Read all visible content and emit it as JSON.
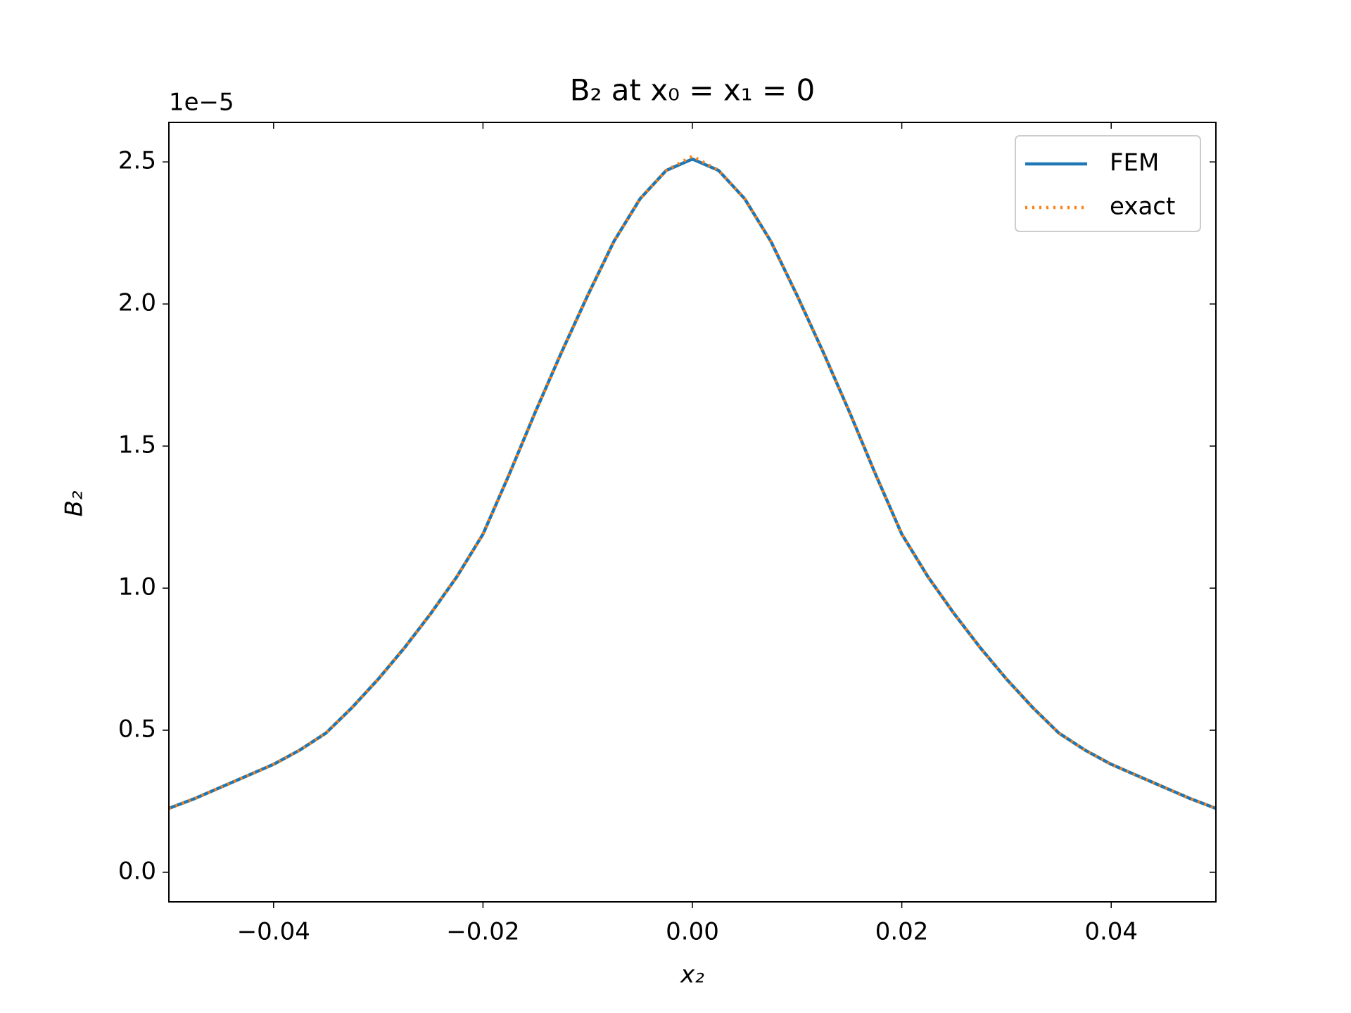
{
  "chart_data": {
    "type": "line",
    "title": "B₂ at x₀ = x₁ = 0",
    "x_label": "x₂",
    "y_label": "B₂",
    "y_offset_label": "1e−5",
    "x": [
      -0.05,
      -0.0475,
      -0.045,
      -0.0425,
      -0.04,
      -0.0375,
      -0.035,
      -0.0325,
      -0.03,
      -0.0275,
      -0.025,
      -0.0225,
      -0.02,
      -0.0175,
      -0.015,
      -0.0125,
      -0.01,
      -0.0075,
      -0.005,
      -0.0025,
      0,
      0.0025,
      0.005,
      0.0075,
      0.01,
      0.0125,
      0.015,
      0.0175,
      0.02,
      0.0225,
      0.025,
      0.0275,
      0.03,
      0.0325,
      0.035,
      0.0375,
      0.04,
      0.0425,
      0.045,
      0.0475,
      0.05
    ],
    "series": [
      {
        "name": "FEM",
        "color": "#1f77b4",
        "dash": "solid",
        "values": [
          0.225,
          0.26,
          0.3,
          0.34,
          0.38,
          0.43,
          0.49,
          0.58,
          0.68,
          0.79,
          0.91,
          1.04,
          1.19,
          1.4,
          1.62,
          1.83,
          2.03,
          2.22,
          2.37,
          2.47,
          2.51,
          2.47,
          2.37,
          2.22,
          2.03,
          1.83,
          1.62,
          1.4,
          1.19,
          1.04,
          0.91,
          0.79,
          0.68,
          0.58,
          0.49,
          0.43,
          0.38,
          0.34,
          0.3,
          0.26,
          0.225
        ]
      },
      {
        "name": "exact",
        "color": "#ff7f0e",
        "dash": "dotted",
        "values": [
          0.225,
          0.26,
          0.3,
          0.34,
          0.38,
          0.43,
          0.49,
          0.58,
          0.68,
          0.79,
          0.91,
          1.04,
          1.19,
          1.4,
          1.62,
          1.83,
          2.03,
          2.22,
          2.37,
          2.47,
          2.52,
          2.47,
          2.37,
          2.22,
          2.03,
          1.83,
          1.62,
          1.4,
          1.19,
          1.04,
          0.91,
          0.79,
          0.68,
          0.58,
          0.49,
          0.43,
          0.38,
          0.34,
          0.3,
          0.26,
          0.225
        ]
      }
    ],
    "xlim": [
      -0.05,
      0.05
    ],
    "xticks": [
      {
        "value": -0.04,
        "label": "−0.04"
      },
      {
        "value": -0.02,
        "label": "−0.02"
      },
      {
        "value": 0,
        "label": "0.00"
      },
      0.02,
      0.04
    ],
    "ylim": [
      -0.104,
      2.639
    ],
    "yticks": [
      {
        "value": 0,
        "label": "0.0"
      },
      0.5,
      {
        "value": 1,
        "label": "1.0"
      },
      1.5,
      {
        "value": 2,
        "label": "2.0"
      },
      2.5
    ],
    "grid": false,
    "legend": "upper right"
  }
}
